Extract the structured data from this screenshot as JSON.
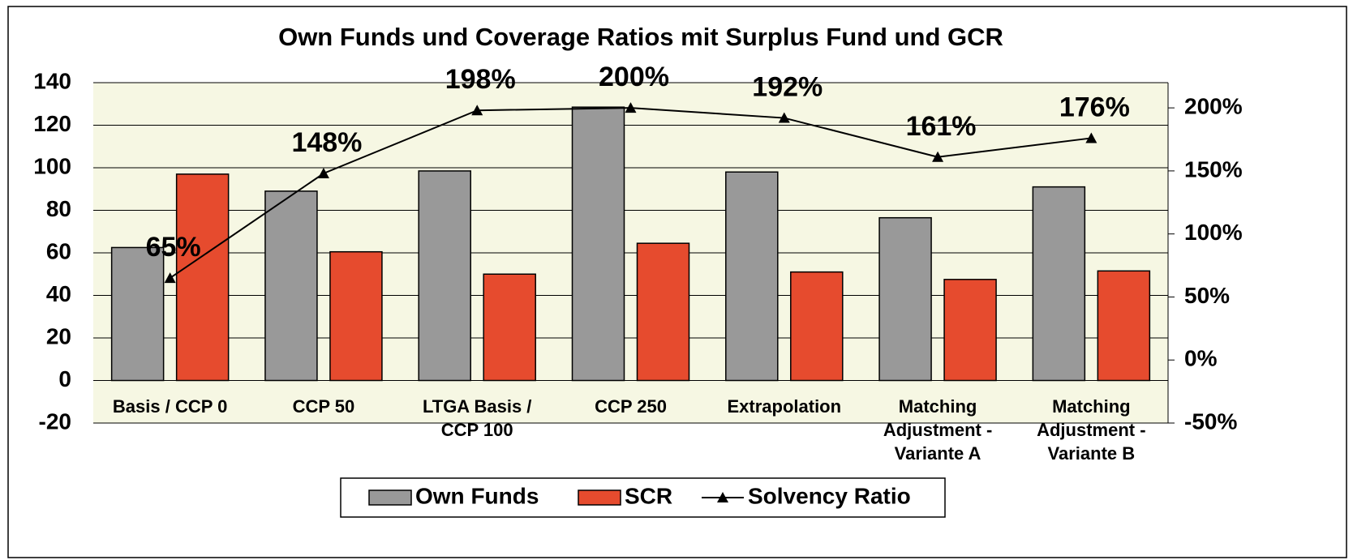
{
  "chart_data": {
    "type": "bar-line",
    "title": "Own Funds und Coverage Ratios mit Surplus Fund und GCR",
    "categories": [
      "Basis / CCP 0",
      "CCP 50",
      "LTGA Basis / CCP 100",
      "CCP 250",
      "Extrapolation",
      "Matching Adjustment - Variante A",
      "Matching Adjustment - Variante B"
    ],
    "series": [
      {
        "name": "Own Funds",
        "type": "bar",
        "color": "#999999",
        "values": [
          62.5,
          89,
          98.5,
          128.5,
          98,
          76.5,
          91
        ]
      },
      {
        "name": "SCR",
        "type": "bar",
        "color": "#e64b2e",
        "values": [
          97,
          60.5,
          50,
          64.5,
          51,
          47.5,
          51.5
        ]
      },
      {
        "name": "Solvency Ratio",
        "type": "line",
        "axis": "y2",
        "color": "#000000",
        "values": [
          65,
          148,
          198,
          200,
          192,
          161,
          176
        ],
        "value_labels": [
          "65%",
          "148%",
          "198%",
          "200%",
          "192%",
          "161%",
          "176%"
        ]
      }
    ],
    "ylim": [
      -20,
      140
    ],
    "yticks": [
      -20,
      0,
      20,
      40,
      60,
      80,
      100,
      120,
      140
    ],
    "y2lim": [
      -50,
      220
    ],
    "y2ticks": [
      {
        "value": -50,
        "label": "-50%"
      },
      {
        "value": 0,
        "label": "0%"
      },
      {
        "value": 50,
        "label": "50%"
      },
      {
        "value": 100,
        "label": "100%"
      },
      {
        "value": 150,
        "label": "150%"
      },
      {
        "value": 200,
        "label": "200%"
      }
    ],
    "grid": true,
    "legend": "bottom"
  }
}
